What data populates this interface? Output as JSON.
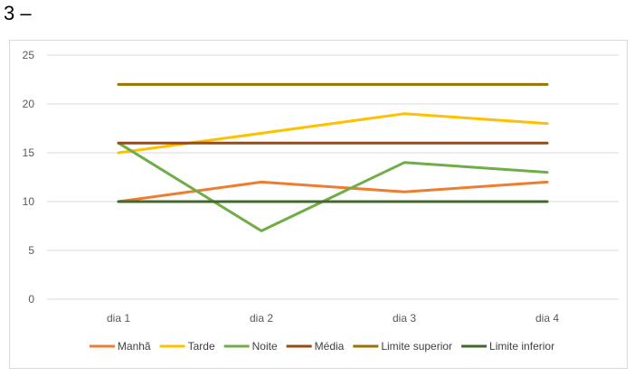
{
  "heading": "3 –",
  "chart_data": {
    "type": "line",
    "title": "",
    "xlabel": "",
    "ylabel": "",
    "categories": [
      "dia 1",
      "dia 2",
      "dia 3",
      "dia 4"
    ],
    "ylim": [
      0,
      25
    ],
    "yticks": [
      0,
      5,
      10,
      15,
      20,
      25
    ],
    "grid": true,
    "legend": "bottom",
    "series": [
      {
        "name": "Manhã",
        "color": "#ed7d31",
        "values": [
          10,
          12,
          11,
          12
        ]
      },
      {
        "name": "Tarde",
        "color": "#ffc000",
        "values": [
          15,
          17,
          19,
          18
        ]
      },
      {
        "name": "Noite",
        "color": "#70ad47",
        "values": [
          16,
          7,
          14,
          13
        ]
      },
      {
        "name": "Média",
        "color": "#9e480e",
        "values": [
          16,
          16,
          16,
          16
        ]
      },
      {
        "name": "Limite superior",
        "color": "#997300",
        "values": [
          22,
          22,
          22,
          22
        ]
      },
      {
        "name": "Limite inferior",
        "color": "#43682b",
        "values": [
          10,
          10,
          10,
          10
        ]
      }
    ]
  }
}
